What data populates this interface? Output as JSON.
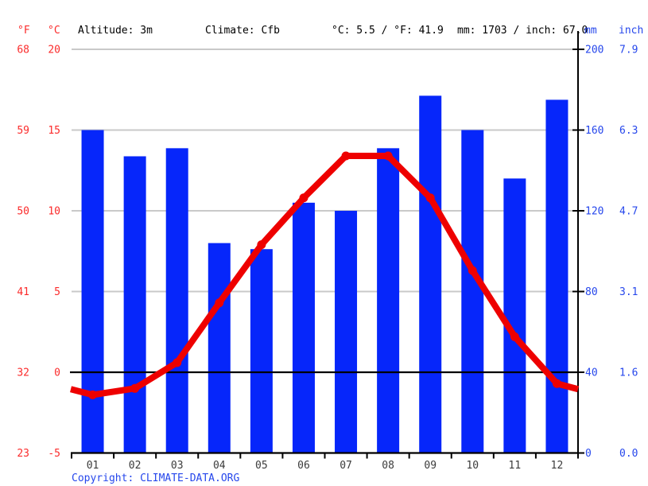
{
  "header": {
    "unit_f": "°F",
    "unit_c": "°C",
    "altitude": "Altitude: 3m",
    "climate": "Climate: Cfb",
    "temperature_summary": "°C: 5.5 / °F: 41.9",
    "precipitation_summary": "mm: 1703 / inch: 67.0",
    "unit_mm": "mm",
    "unit_inch": "inch"
  },
  "footer": {
    "copyright_prefix": "Copyright: ",
    "copyright_link": "CLIMATE-DATA.ORG"
  },
  "colors": {
    "bar_blue": "#0626fa",
    "line_red": "#ee0000",
    "label_red": "#fb2b2b",
    "label_blue": "#2647ec",
    "grid_gray": "#c9c9c9",
    "axis_black": "#000000",
    "month_label": "#3b3b3b"
  },
  "chart_data": {
    "type": "bar+line combined climate chart (climograph)",
    "categories": [
      "01",
      "02",
      "03",
      "04",
      "05",
      "06",
      "07",
      "08",
      "09",
      "10",
      "11",
      "12"
    ],
    "series": [
      {
        "name": "precipitation",
        "type": "bar",
        "axis": "right_mm",
        "unit": "mm",
        "values": [
          160,
          147,
          151,
          104,
          101,
          124,
          120,
          151,
          177,
          160,
          136,
          175
        ]
      },
      {
        "name": "temperature",
        "type": "line",
        "axis": "left_celsius",
        "unit": "°C",
        "values": [
          -1.4,
          -1.0,
          0.6,
          4.3,
          7.9,
          10.8,
          13.4,
          13.4,
          10.8,
          6.3,
          2.2,
          -0.7
        ]
      }
    ],
    "axes": {
      "left_fahrenheit": {
        "label": "°F",
        "ticks": [
          68,
          59,
          50,
          41,
          32,
          23
        ]
      },
      "left_celsius": {
        "label": "°C",
        "ticks": [
          20,
          15,
          10,
          5,
          0,
          -5
        ],
        "range": [
          -5,
          20
        ]
      },
      "right_mm": {
        "label": "mm",
        "ticks": [
          200,
          160,
          120,
          80,
          40,
          0
        ],
        "range": [
          0,
          200
        ]
      },
      "right_inch": {
        "label": "inch",
        "ticks": [
          "7.9",
          "6.3",
          "4.7",
          "3.1",
          "1.6",
          "0.0"
        ]
      }
    },
    "grid": true,
    "zero_line_celsius": 0,
    "legend": "none",
    "notes": "Line extends to plot edges at interpolated Dec/Jan midpoint value"
  }
}
